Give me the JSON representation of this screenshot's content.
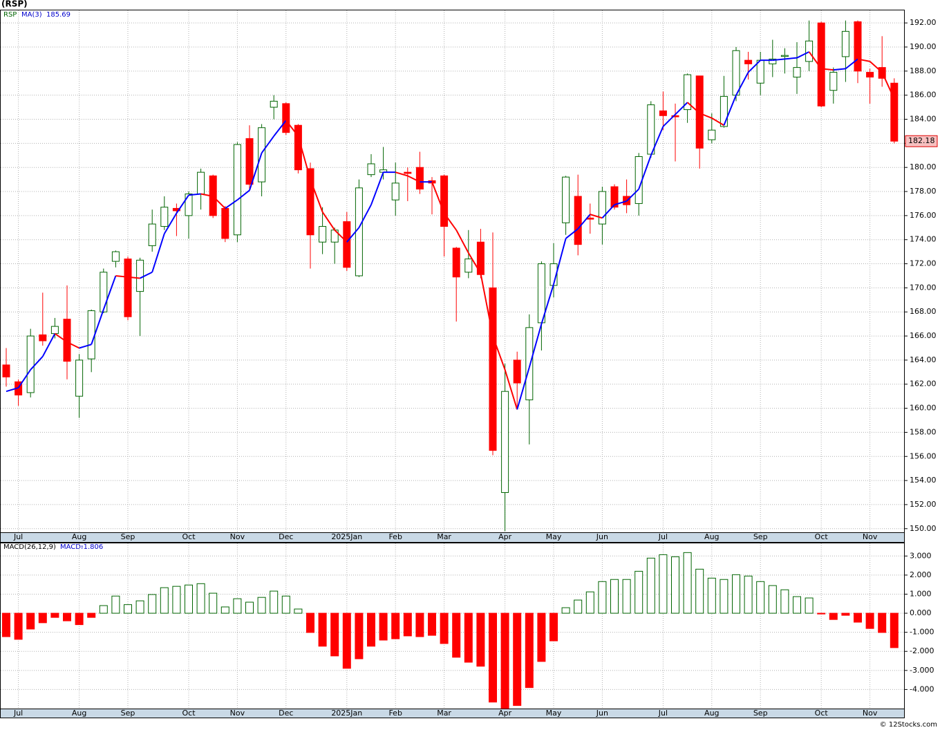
{
  "chart_data": [
    {
      "type": "candlestick",
      "title": "(RSP)",
      "categories": [
        null,
        null,
        null,
        null,
        null,
        null,
        null,
        null,
        null,
        null,
        null,
        null,
        null,
        null,
        null,
        null,
        null,
        null,
        null,
        null,
        null,
        null,
        null,
        null,
        null,
        null,
        null,
        null,
        null,
        null,
        null,
        null,
        null,
        null,
        null,
        null,
        null,
        null,
        null,
        null,
        null,
        null,
        null,
        null,
        null,
        null,
        null,
        null,
        null,
        null,
        null,
        null,
        null,
        null,
        null,
        null,
        null,
        null,
        null,
        null,
        null,
        null,
        null,
        null,
        null,
        null,
        null,
        null,
        null,
        null,
        null,
        null,
        null,
        null
      ],
      "xticks": [
        {
          "value": 1,
          "label": "Jul"
        },
        {
          "value": 6,
          "label": "Aug"
        },
        {
          "value": 10,
          "label": "Sep"
        },
        {
          "value": 15,
          "label": "Oct"
        },
        {
          "value": 19,
          "label": "Nov"
        },
        {
          "value": 23,
          "label": "Dec"
        },
        {
          "value": 28,
          "label": "2025Jan"
        },
        {
          "value": 32,
          "label": "Feb"
        },
        {
          "value": 36,
          "label": "Mar"
        },
        {
          "value": 41,
          "label": "Apr"
        },
        {
          "value": 45,
          "label": "May"
        },
        {
          "value": 49,
          "label": "Jun"
        },
        {
          "value": 54,
          "label": "Jul"
        },
        {
          "value": 58,
          "label": "Aug"
        },
        {
          "value": 62,
          "label": "Sep"
        },
        {
          "value": 67,
          "label": "Oct"
        },
        {
          "value": 71,
          "label": "Nov"
        }
      ],
      "ylim": [
        149.7,
        193.1
      ],
      "yticks": [
        {
          "value": 150,
          "label": "150.00"
        },
        {
          "value": 152,
          "label": "152.00"
        },
        {
          "value": 154,
          "label": "154.00"
        },
        {
          "value": 156,
          "label": "156.00"
        },
        {
          "value": 158,
          "label": "158.00"
        },
        {
          "value": 160,
          "label": "160.00"
        },
        {
          "value": 162,
          "label": "162.00"
        },
        {
          "value": 164,
          "label": "164.00"
        },
        {
          "value": 166,
          "label": "166.00"
        },
        {
          "value": 168,
          "label": "168.00"
        },
        {
          "value": 170,
          "label": "170.00"
        },
        {
          "value": 172,
          "label": "172.00"
        },
        {
          "value": 174,
          "label": "174.00"
        },
        {
          "value": 176,
          "label": "176.00"
        },
        {
          "value": 178,
          "label": "178.00"
        },
        {
          "value": 180,
          "label": "180.00"
        },
        {
          "value": 182,
          "label": "182.00"
        },
        {
          "value": 184,
          "label": "184.00"
        },
        {
          "value": 186,
          "label": "186.00"
        },
        {
          "value": 188,
          "label": "188.00"
        },
        {
          "value": 190,
          "label": "190.00"
        },
        {
          "value": 192,
          "label": "192.00"
        }
      ],
      "grid": true,
      "series": [
        {
          "name": "RSP",
          "up_color": "#006400",
          "down_color": "#ff0000",
          "open": [
            163.6,
            162.2,
            161.3,
            166.1,
            166.2,
            167.4,
            161.0,
            164.1,
            168.0,
            172.2,
            172.4,
            169.7,
            173.5,
            175.1,
            176.6,
            176.0,
            177.8,
            179.3,
            176.6,
            174.4,
            182.4,
            178.8,
            185.0,
            185.3,
            183.5,
            179.9,
            173.8,
            173.8,
            175.5,
            171.0,
            179.4,
            179.6,
            177.3,
            179.6,
            180.0,
            178.9,
            179.3,
            173.3,
            171.3,
            173.8,
            170.0,
            153.0,
            164.0,
            160.7,
            167.1,
            170.2,
            175.4,
            177.6,
            175.8,
            175.3,
            178.4,
            177.6,
            177.0,
            181.1,
            184.7,
            184.3,
            184.8,
            187.6,
            182.3,
            183.4,
            186.0,
            188.9,
            187.0,
            188.6,
            189.3,
            187.5,
            188.8,
            192.0,
            186.4,
            189.2,
            192.1,
            187.9,
            188.3,
            187.0
          ],
          "high": [
            165.0,
            162.4,
            166.6,
            169.6,
            167.5,
            170.2,
            164.5,
            168.2,
            171.6,
            173.1,
            172.6,
            172.5,
            176.5,
            177.6,
            177.0,
            178.0,
            179.9,
            179.4,
            176.8,
            182.1,
            183.5,
            183.6,
            186.0,
            185.4,
            183.6,
            180.4,
            176.7,
            175.0,
            176.3,
            179.0,
            181.1,
            181.7,
            180.4,
            180.0,
            181.3,
            179.2,
            179.4,
            173.4,
            174.8,
            174.9,
            174.6,
            163.7,
            164.7,
            167.8,
            172.2,
            173.7,
            179.3,
            179.4,
            177.0,
            178.4,
            178.6,
            179.0,
            181.2,
            185.5,
            186.3,
            185.3,
            187.8,
            187.6,
            184.5,
            187.6,
            190.0,
            189.6,
            189.6,
            190.6,
            189.9,
            190.4,
            192.2,
            192.1,
            188.3,
            192.2,
            192.2,
            188.2,
            190.9,
            187.4
          ],
          "low": [
            161.8,
            160.2,
            160.9,
            165.2,
            165.8,
            162.4,
            159.2,
            163.0,
            167.9,
            171.7,
            167.3,
            166.0,
            173.0,
            174.8,
            174.3,
            174.1,
            176.5,
            175.8,
            173.8,
            173.8,
            178.1,
            177.6,
            184.0,
            182.7,
            179.5,
            171.6,
            172.8,
            172.0,
            171.4,
            170.9,
            179.2,
            179.0,
            176.0,
            177.2,
            177.8,
            176.1,
            172.6,
            167.2,
            170.8,
            170.8,
            156.1,
            149.8,
            160.1,
            157.0,
            164.8,
            169.2,
            174.4,
            172.7,
            174.5,
            173.6,
            176.5,
            176.2,
            176.0,
            180.8,
            183.1,
            180.5,
            183.7,
            179.9,
            182.0,
            183.3,
            185.5,
            187.3,
            186.0,
            187.5,
            187.8,
            186.1,
            188.0,
            185.0,
            185.3,
            187.1,
            187.0,
            185.3,
            186.7,
            182.0
          ],
          "close": [
            162.6,
            161.1,
            166.0,
            165.6,
            166.8,
            163.9,
            164.0,
            168.1,
            171.3,
            173.0,
            167.6,
            172.3,
            175.3,
            176.7,
            176.4,
            177.8,
            179.6,
            176.0,
            174.1,
            181.9,
            178.6,
            183.3,
            185.5,
            182.9,
            179.8,
            174.4,
            175.1,
            174.8,
            171.7,
            178.3,
            180.3,
            179.8,
            178.7,
            179.5,
            178.2,
            178.7,
            175.1,
            170.9,
            172.4,
            171.1,
            156.5,
            161.4,
            162.1,
            166.7,
            172.0,
            172.0,
            179.2,
            173.6,
            175.7,
            178.0,
            176.7,
            176.9,
            180.9,
            185.2,
            184.3,
            184.2,
            187.7,
            181.6,
            183.1,
            185.9,
            189.7,
            188.6,
            188.9,
            189.0,
            189.3,
            188.3,
            190.5,
            185.1,
            187.9,
            191.3,
            188.0,
            187.5,
            187.4,
            182.18
          ]
        },
        {
          "name": "MA(3)",
          "color": "#0000ff",
          "falling_color": "#ff0000",
          "values": [
            161.4,
            161.7,
            163.2,
            164.3,
            166.2,
            165.5,
            165.0,
            165.3,
            168.2,
            171.0,
            170.9,
            170.8,
            171.3,
            174.5,
            176.2,
            177.7,
            177.8,
            177.6,
            176.6,
            177.3,
            178.1,
            181.2,
            182.6,
            183.9,
            182.6,
            179.0,
            176.3,
            174.8,
            173.8,
            175.0,
            176.9,
            179.6,
            179.6,
            179.3,
            178.8,
            178.8,
            176.2,
            174.8,
            172.9,
            171.2,
            166.0,
            163.2,
            159.9,
            163.4,
            167.0,
            170.3,
            174.1,
            174.9,
            176.1,
            175.8,
            176.9,
            177.2,
            178.2,
            181.0,
            183.4,
            184.4,
            185.4,
            184.5,
            184.1,
            183.5,
            186.0,
            187.9,
            188.9,
            188.9,
            189.0,
            189.1,
            189.6,
            188.2,
            188.1,
            188.2,
            189.0,
            188.8,
            187.9,
            185.69
          ]
        }
      ]
    },
    {
      "type": "bar",
      "title": "MACD(26,12,9)",
      "xticks": [
        {
          "value": 1,
          "label": "Jul"
        },
        {
          "value": 6,
          "label": "Aug"
        },
        {
          "value": 10,
          "label": "Sep"
        },
        {
          "value": 15,
          "label": "Oct"
        },
        {
          "value": 19,
          "label": "Nov"
        },
        {
          "value": 23,
          "label": "Dec"
        },
        {
          "value": 28,
          "label": "2025Jan"
        },
        {
          "value": 32,
          "label": "Feb"
        },
        {
          "value": 36,
          "label": "Mar"
        },
        {
          "value": 41,
          "label": "Apr"
        },
        {
          "value": 45,
          "label": "May"
        },
        {
          "value": 49,
          "label": "Jun"
        },
        {
          "value": 54,
          "label": "Jul"
        },
        {
          "value": 58,
          "label": "Aug"
        },
        {
          "value": 62,
          "label": "Sep"
        },
        {
          "value": 67,
          "label": "Oct"
        },
        {
          "value": 71,
          "label": "Nov"
        }
      ],
      "ylim": [
        -5.0,
        3.7
      ],
      "yticks": [
        {
          "value": -4,
          "label": "-4.000"
        },
        {
          "value": -3,
          "label": "-3.000"
        },
        {
          "value": -2,
          "label": "-2.000"
        },
        {
          "value": -1,
          "label": "-1.000"
        },
        {
          "value": 0,
          "label": "0.000"
        },
        {
          "value": 1,
          "label": "1.000"
        },
        {
          "value": 2,
          "label": "2.000"
        },
        {
          "value": 3,
          "label": "3.000"
        }
      ],
      "grid": true,
      "series": [
        {
          "name": "MACD:",
          "color": "#0000cc",
          "positive_color": "#006400",
          "negative_color": "#ff0000",
          "values": [
            -1.23,
            -1.37,
            -0.83,
            -0.5,
            -0.22,
            -0.4,
            -0.6,
            -0.22,
            0.4,
            0.9,
            0.45,
            0.65,
            0.98,
            1.34,
            1.41,
            1.48,
            1.55,
            1.05,
            0.33,
            0.76,
            0.58,
            0.83,
            1.16,
            0.9,
            0.22,
            -1.01,
            -1.73,
            -2.24,
            -2.89,
            -2.39,
            -1.73,
            -1.41,
            -1.34,
            -1.19,
            -1.23,
            -1.16,
            -1.59,
            -2.31,
            -2.57,
            -2.78,
            -4.66,
            -4.99,
            -4.84,
            -3.9,
            -2.53,
            -1.45,
            0.29,
            0.69,
            1.12,
            1.66,
            1.77,
            1.77,
            2.2,
            2.89,
            3.07,
            2.96,
            3.18,
            2.31,
            1.84,
            1.77,
            2.02,
            1.95,
            1.66,
            1.45,
            1.23,
            0.87,
            0.8,
            -0.04,
            -0.33,
            -0.11,
            -0.47,
            -0.8,
            -1.01,
            -1.806
          ]
        }
      ]
    }
  ],
  "footer": "© 12Stocks.com"
}
